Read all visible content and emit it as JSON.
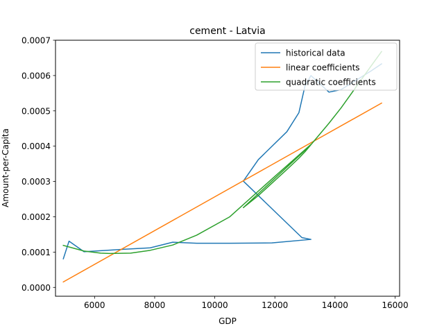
{
  "chart_data": {
    "type": "line",
    "title": "cement - Latvia",
    "xlabel": "GDP",
    "ylabel": "Amount-per-Capita",
    "xlim": [
      4700,
      16150
    ],
    "ylim": [
      -2.5e-05,
      0.0007
    ],
    "xticks": [
      6000,
      8000,
      10000,
      12000,
      14000,
      16000
    ],
    "xtick_labels": [
      "6000",
      "8000",
      "10000",
      "12000",
      "14000",
      "16000"
    ],
    "yticks": [
      0.0,
      0.0001,
      0.0002,
      0.0003,
      0.0004,
      0.0005,
      0.0006,
      0.0007
    ],
    "ytick_labels": [
      "0.0000",
      "0.0001",
      "0.0002",
      "0.0003",
      "0.0004",
      "0.0005",
      "0.0006",
      "0.0007"
    ],
    "grid": false,
    "legend_position": "top-right",
    "series": [
      {
        "name": "historical data",
        "color": "#1f77b4",
        "x": [
          4960,
          5150,
          5650,
          6200,
          7000,
          7850,
          8600,
          9400,
          10500,
          11900,
          13200,
          12900,
          10950,
          11450,
          12400,
          12800,
          13000,
          13200,
          13800,
          14200,
          15200,
          15550
        ],
        "y": [
          8.1e-05,
          0.000131,
          0.000101,
          0.000104,
          0.000108,
          0.000112,
          0.000128,
          0.000125,
          0.000125,
          0.000126,
          0.000136,
          0.000141,
          0.000301,
          0.000362,
          0.000441,
          0.000495,
          0.00057,
          0.0006,
          0.000553,
          0.00056,
          0.000613,
          0.000633
        ]
      },
      {
        "name": "linear coefficients",
        "color": "#ff7f0e",
        "x": [
          4960,
          15550
        ],
        "y": [
          1.55e-05,
          0.000522
        ]
      },
      {
        "name": "quadratic coefficients",
        "color": "#2ca02c",
        "x": [
          4960,
          5650,
          6200,
          6500,
          7200,
          7850,
          8600,
          9400,
          10500,
          11900,
          13200,
          12900,
          10950,
          11450,
          12400,
          12800,
          13000,
          13800,
          14200,
          15200,
          15550
        ],
        "y": [
          0.000119,
          0.000103,
          9.7e-05,
          9.6e-05,
          9.7e-05,
          0.000105,
          0.00012,
          0.000148,
          0.0002,
          0.000307,
          0.000405,
          0.00038,
          0.000226,
          0.00026,
          0.000334,
          0.000366,
          0.000384,
          0.000465,
          0.000508,
          0.000627,
          0.000668
        ]
      }
    ]
  }
}
